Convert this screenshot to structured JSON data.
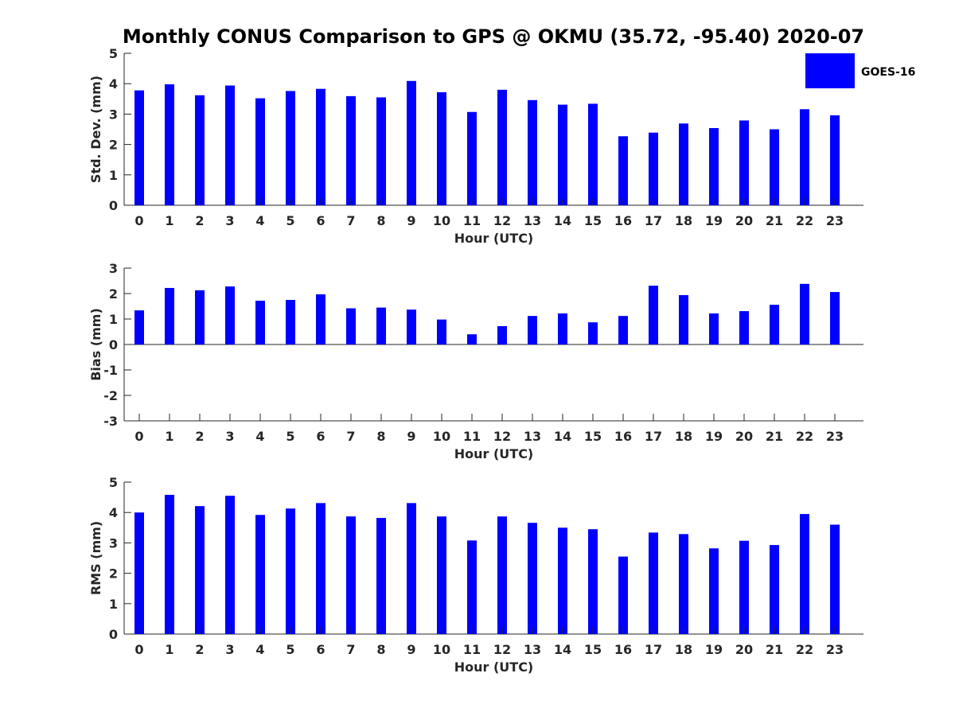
{
  "title": "Monthly CONUS Comparison to GPS @ OKMU (35.72, -95.40) 2020-07",
  "legend": {
    "label": "GOES-16",
    "color": "#0000ff",
    "placement": "top-right"
  },
  "chart_data": [
    {
      "type": "bar",
      "xlabel": "Hour (UTC)",
      "ylabel": "Std. Dev. (mm)",
      "ylim": [
        0,
        5
      ],
      "yticks": [
        0,
        1,
        2,
        3,
        4,
        5
      ],
      "categories": [
        "0",
        "1",
        "2",
        "3",
        "4",
        "5",
        "6",
        "7",
        "8",
        "9",
        "10",
        "11",
        "12",
        "13",
        "14",
        "15",
        "16",
        "17",
        "18",
        "19",
        "20",
        "21",
        "22",
        "23"
      ],
      "series": [
        {
          "name": "GOES-16",
          "color": "#0000ff",
          "values": [
            3.78,
            3.98,
            3.62,
            3.94,
            3.52,
            3.76,
            3.83,
            3.59,
            3.55,
            4.09,
            3.72,
            3.07,
            3.8,
            3.46,
            3.31,
            3.34,
            2.27,
            2.39,
            2.69,
            2.54,
            2.79,
            2.5,
            3.16,
            2.96
          ]
        }
      ]
    },
    {
      "type": "bar",
      "xlabel": "Hour (UTC)",
      "ylabel": "Bias (mm)",
      "ylim": [
        -3,
        3
      ],
      "yticks": [
        -3,
        -2,
        -1,
        0,
        1,
        2,
        3
      ],
      "categories": [
        "0",
        "1",
        "2",
        "3",
        "4",
        "5",
        "6",
        "7",
        "8",
        "9",
        "10",
        "11",
        "12",
        "13",
        "14",
        "15",
        "16",
        "17",
        "18",
        "19",
        "20",
        "21",
        "22",
        "23"
      ],
      "series": [
        {
          "name": "GOES-16",
          "color": "#0000ff",
          "values": [
            1.34,
            2.22,
            2.13,
            2.28,
            1.72,
            1.75,
            1.97,
            1.42,
            1.45,
            1.37,
            0.98,
            0.4,
            0.72,
            1.12,
            1.22,
            0.87,
            1.12,
            2.31,
            1.94,
            1.22,
            1.31,
            1.56,
            2.38,
            2.06
          ]
        }
      ]
    },
    {
      "type": "bar",
      "xlabel": "Hour (UTC)",
      "ylabel": "RMS (mm)",
      "ylim": [
        0,
        5
      ],
      "yticks": [
        0,
        1,
        2,
        3,
        4,
        5
      ],
      "categories": [
        "0",
        "1",
        "2",
        "3",
        "4",
        "5",
        "6",
        "7",
        "8",
        "9",
        "10",
        "11",
        "12",
        "13",
        "14",
        "15",
        "16",
        "17",
        "18",
        "19",
        "20",
        "21",
        "22",
        "23"
      ],
      "series": [
        {
          "name": "GOES-16",
          "color": "#0000ff",
          "values": [
            4.0,
            4.58,
            4.21,
            4.55,
            3.92,
            4.13,
            4.31,
            3.87,
            3.82,
            4.31,
            3.87,
            3.08,
            3.87,
            3.66,
            3.5,
            3.45,
            2.55,
            3.34,
            3.29,
            2.82,
            3.07,
            2.93,
            3.95,
            3.6
          ]
        }
      ]
    }
  ]
}
